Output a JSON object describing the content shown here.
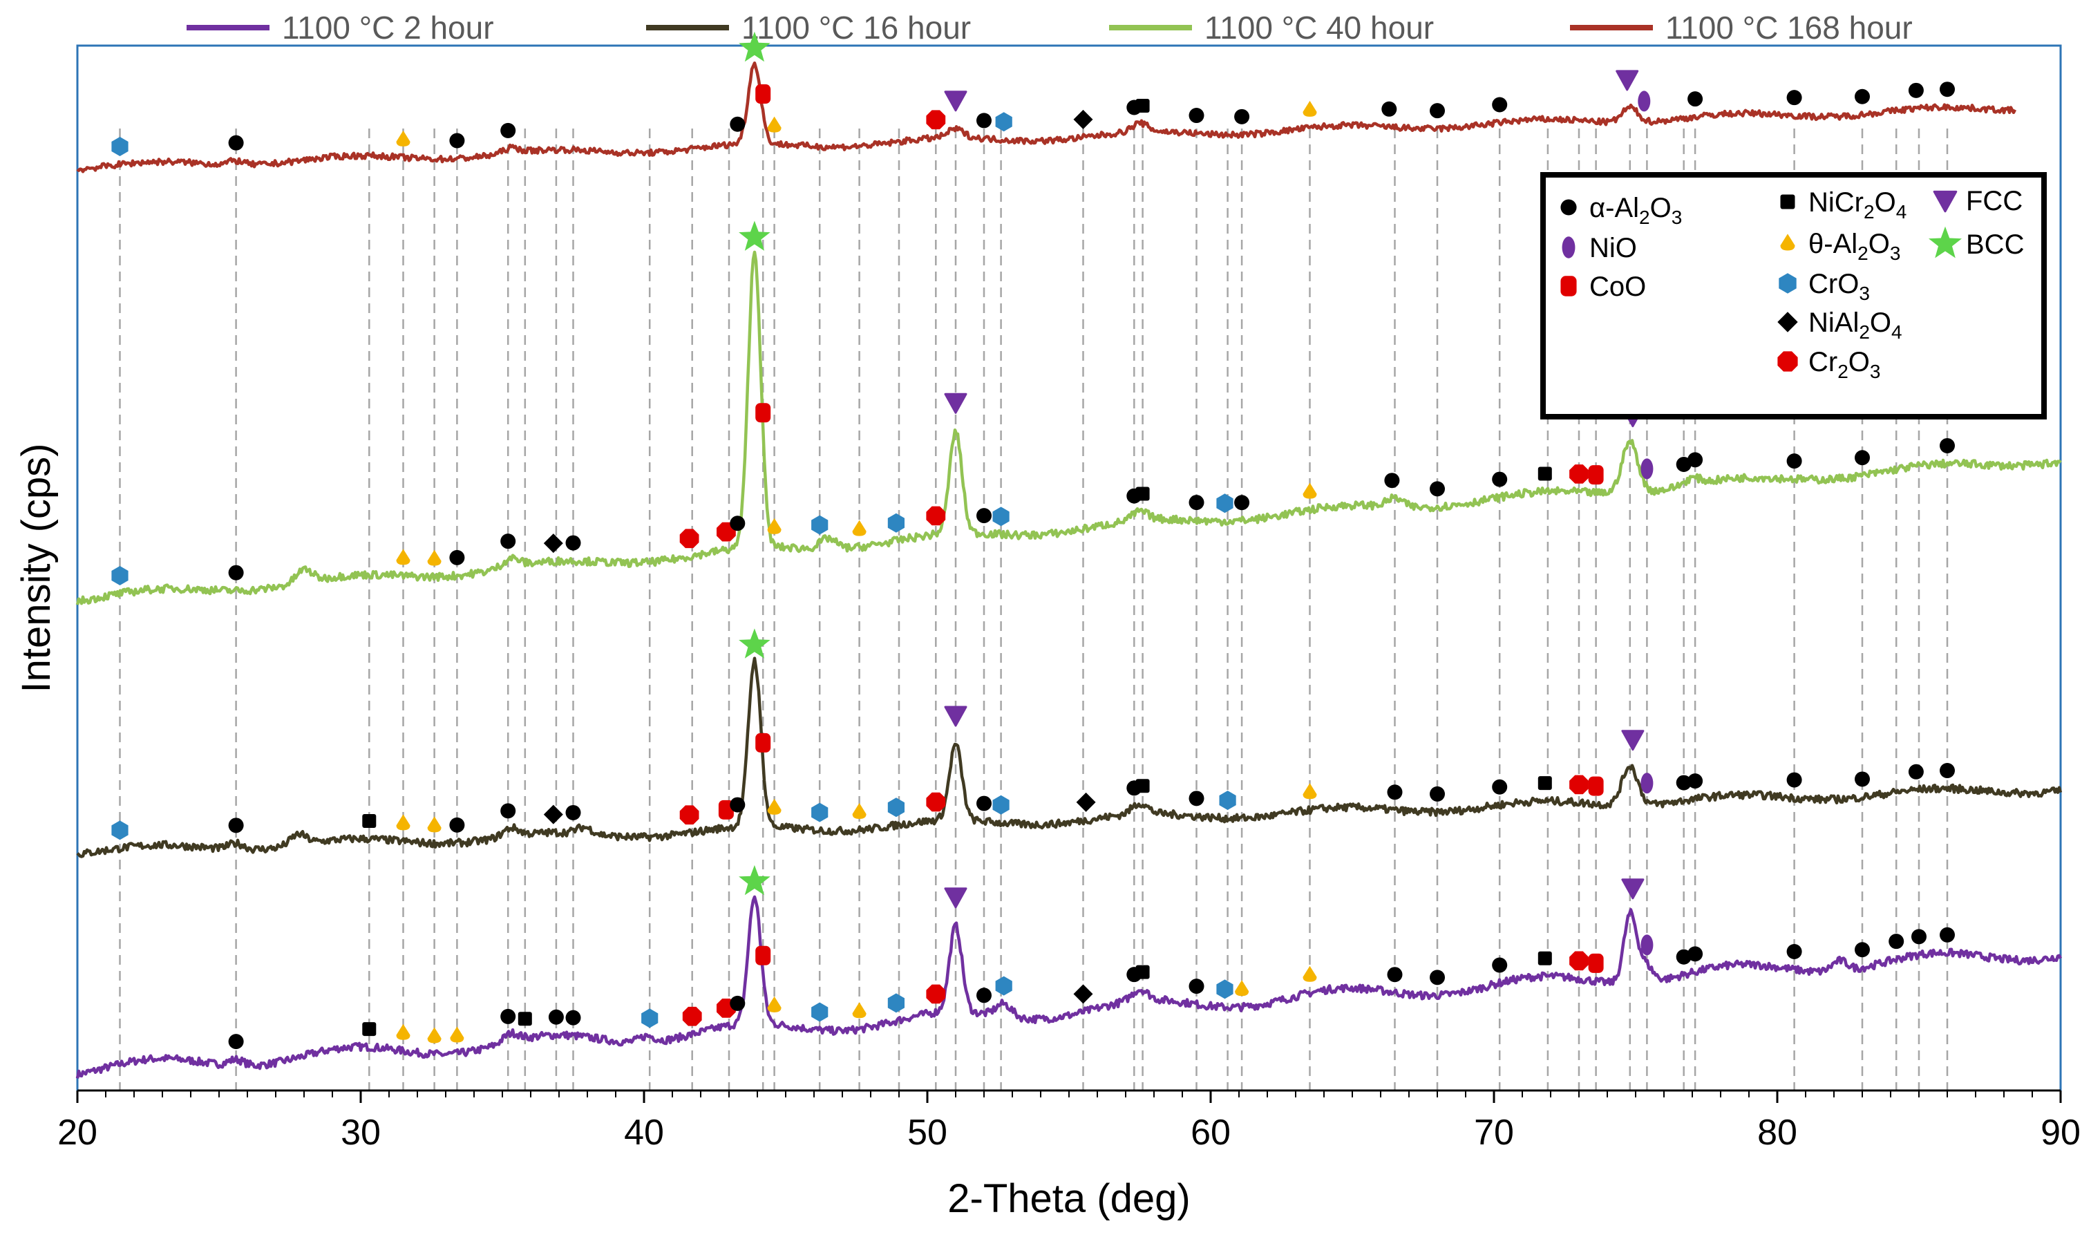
{
  "chart_data": {
    "type": "line",
    "xlabel": "2-Theta (deg)",
    "ylabel": "Intensity (cps)",
    "xlim": [
      20,
      90
    ],
    "xticks": [
      20,
      30,
      40,
      50,
      60,
      70,
      80,
      90
    ],
    "grid": "vertical dashed reference lines at indexed peak positions",
    "legend": {
      "placement": "top"
    },
    "series": [
      {
        "name": "1100 °C 2 hour",
        "color": "#7030A0",
        "offset": 0,
        "peaks": [
          [
            25.6,
            6
          ],
          [
            35.3,
            8
          ],
          [
            40.1,
            6
          ],
          [
            43.9,
            118
          ],
          [
            51.0,
            80
          ],
          [
            52.7,
            12
          ],
          [
            57.5,
            10
          ],
          [
            74.8,
            62
          ],
          [
            75.3,
            18
          ],
          [
            82.2,
            10
          ]
        ],
        "markers": [
          [
            "al",
            25.6
          ],
          [
            "nicr",
            30.3
          ],
          [
            "theta",
            31.5
          ],
          [
            "theta",
            32.6
          ],
          [
            "theta",
            33.4
          ],
          [
            "al",
            35.2
          ],
          [
            "nicr",
            35.8
          ],
          [
            "al",
            36.9
          ],
          [
            "al",
            37.5
          ],
          [
            "cro3",
            40.2
          ],
          [
            "cr2o3",
            41.7
          ],
          [
            "cr2o3",
            42.9
          ],
          [
            "al",
            43.3
          ],
          [
            "bcc",
            43.9
          ],
          [
            "coo",
            44.2
          ],
          [
            "theta",
            44.6
          ],
          [
            "cro3",
            46.2
          ],
          [
            "theta",
            47.6
          ],
          [
            "cro3",
            48.9
          ],
          [
            "cr2o3",
            50.3
          ],
          [
            "fcc",
            51.0
          ],
          [
            "al",
            52.0
          ],
          [
            "cro3",
            52.7
          ],
          [
            "nial",
            55.5
          ],
          [
            "al",
            57.3
          ],
          [
            "nicr",
            57.6
          ],
          [
            "al",
            59.5
          ],
          [
            "cro3",
            60.5
          ],
          [
            "theta",
            61.1
          ],
          [
            "theta",
            63.5
          ],
          [
            "al",
            66.5
          ],
          [
            "al",
            68.0
          ],
          [
            "al",
            70.2
          ],
          [
            "nicr",
            71.8
          ],
          [
            "cr2o3",
            73.0
          ],
          [
            "coo",
            73.6
          ],
          [
            "fcc",
            74.9
          ],
          [
            "nio",
            75.4
          ],
          [
            "al",
            76.7
          ],
          [
            "al",
            77.1
          ],
          [
            "al",
            80.6
          ],
          [
            "al",
            83.0
          ],
          [
            "al",
            84.2
          ],
          [
            "al",
            85.0
          ],
          [
            "al",
            86.0
          ]
        ]
      },
      {
        "name": "1100 °C 16 hour",
        "color": "#403A22",
        "offset": 1,
        "peaks": [
          [
            25.6,
            6
          ],
          [
            27.8,
            10
          ],
          [
            35.3,
            8
          ],
          [
            37.9,
            6
          ],
          [
            43.9,
            158
          ],
          [
            51.0,
            72
          ],
          [
            57.5,
            10
          ],
          [
            74.8,
            38
          ]
        ],
        "markers": [
          [
            "cro3",
            21.5
          ],
          [
            "al",
            25.6
          ],
          [
            "nicr",
            30.3
          ],
          [
            "theta",
            31.5
          ],
          [
            "theta",
            32.6
          ],
          [
            "al",
            33.4
          ],
          [
            "al",
            35.2
          ],
          [
            "nial",
            36.8
          ],
          [
            "al",
            37.5
          ],
          [
            "cr2o3",
            41.6
          ],
          [
            "coo",
            42.9
          ],
          [
            "al",
            43.3
          ],
          [
            "bcc",
            43.9
          ],
          [
            "coo",
            44.2
          ],
          [
            "theta",
            44.6
          ],
          [
            "cro3",
            46.2
          ],
          [
            "theta",
            47.6
          ],
          [
            "cro3",
            48.9
          ],
          [
            "cr2o3",
            50.3
          ],
          [
            "fcc",
            51.0
          ],
          [
            "al",
            52.0
          ],
          [
            "cro3",
            52.6
          ],
          [
            "nial",
            55.6
          ],
          [
            "al",
            57.3
          ],
          [
            "nicr",
            57.6
          ],
          [
            "al",
            59.5
          ],
          [
            "cro3",
            60.6
          ],
          [
            "theta",
            63.5
          ],
          [
            "al",
            66.5
          ],
          [
            "al",
            68.0
          ],
          [
            "al",
            70.2
          ],
          [
            "nicr",
            71.8
          ],
          [
            "cr2o3",
            73.0
          ],
          [
            "coo",
            73.6
          ],
          [
            "fcc",
            74.9
          ],
          [
            "nio",
            75.4
          ],
          [
            "al",
            76.7
          ],
          [
            "al",
            77.1
          ],
          [
            "al",
            80.6
          ],
          [
            "al",
            83.0
          ],
          [
            "al",
            84.9
          ],
          [
            "al",
            86.0
          ]
        ]
      },
      {
        "name": "1100 °C 40 hour",
        "color": "#92C353",
        "offset": 2,
        "peaks": [
          [
            28.0,
            12
          ],
          [
            35.3,
            8
          ],
          [
            43.9,
            275
          ],
          [
            46.5,
            10
          ],
          [
            51.0,
            95
          ],
          [
            57.5,
            8
          ],
          [
            66.5,
            8
          ],
          [
            74.8,
            48
          ],
          [
            77.0,
            6
          ]
        ],
        "markers": [
          [
            "cro3",
            21.5
          ],
          [
            "al",
            25.6
          ],
          [
            "theta",
            31.5
          ],
          [
            "theta",
            32.6
          ],
          [
            "al",
            33.4
          ],
          [
            "al",
            35.2
          ],
          [
            "nial",
            36.8
          ],
          [
            "al",
            37.5
          ],
          [
            "cr2o3",
            41.6
          ],
          [
            "cr2o3",
            42.9
          ],
          [
            "al",
            43.3
          ],
          [
            "bcc",
            43.9
          ],
          [
            "coo",
            44.2
          ],
          [
            "theta",
            44.6
          ],
          [
            "cro3",
            46.2
          ],
          [
            "theta",
            47.6
          ],
          [
            "cro3",
            48.9
          ],
          [
            "cr2o3",
            50.3
          ],
          [
            "fcc",
            51.0
          ],
          [
            "al",
            52.0
          ],
          [
            "cro3",
            52.6
          ],
          [
            "al",
            57.3
          ],
          [
            "nicr",
            57.6
          ],
          [
            "al",
            59.5
          ],
          [
            "cro3",
            60.5
          ],
          [
            "al",
            61.1
          ],
          [
            "theta",
            63.5
          ],
          [
            "al",
            66.4
          ],
          [
            "al",
            68.0
          ],
          [
            "al",
            70.2
          ],
          [
            "nicr",
            71.8
          ],
          [
            "cr2o3",
            73.0
          ],
          [
            "coo",
            73.6
          ],
          [
            "fcc",
            74.9
          ],
          [
            "nio",
            75.4
          ],
          [
            "al",
            76.7
          ],
          [
            "al",
            77.1
          ],
          [
            "al",
            80.6
          ],
          [
            "al",
            83.0
          ],
          [
            "al",
            86.0
          ]
        ]
      },
      {
        "name": "1100 °C 168 hour",
        "color": "#A93226",
        "offset": 3,
        "peaks": [
          [
            25.6,
            5
          ],
          [
            35.3,
            6
          ],
          [
            43.9,
            95
          ],
          [
            51.0,
            10
          ],
          [
            57.5,
            10
          ],
          [
            74.8,
            18
          ]
        ],
        "markers": [
          [
            "cro3",
            21.5
          ],
          [
            "al",
            25.6
          ],
          [
            "theta",
            31.5
          ],
          [
            "al",
            33.4
          ],
          [
            "al",
            35.2
          ],
          [
            "al",
            43.3
          ],
          [
            "bcc",
            43.9
          ],
          [
            "coo",
            44.2
          ],
          [
            "theta",
            44.6
          ],
          [
            "cr2o3",
            50.3
          ],
          [
            "fcc",
            51.0
          ],
          [
            "al",
            52.0
          ],
          [
            "cro3",
            52.7
          ],
          [
            "nial",
            55.5
          ],
          [
            "al",
            57.3
          ],
          [
            "nicr",
            57.6
          ],
          [
            "al",
            59.5
          ],
          [
            "al",
            61.1
          ],
          [
            "theta",
            63.5
          ],
          [
            "al",
            66.3
          ],
          [
            "al",
            68.0
          ],
          [
            "al",
            70.2
          ],
          [
            "fcc",
            74.7
          ],
          [
            "nio",
            75.3
          ],
          [
            "al",
            77.1
          ],
          [
            "al",
            80.6
          ],
          [
            "al",
            83.0
          ],
          [
            "al",
            84.9
          ],
          [
            "al",
            86.0
          ]
        ]
      }
    ],
    "reference_lines": [
      21.5,
      25.6,
      30.3,
      31.5,
      32.6,
      33.4,
      35.2,
      35.8,
      36.9,
      37.5,
      40.2,
      41.7,
      43.0,
      44.2,
      44.6,
      46.2,
      47.6,
      49.0,
      50.3,
      51.0,
      52.0,
      52.6,
      55.5,
      57.3,
      57.6,
      59.5,
      60.6,
      61.1,
      63.5,
      66.5,
      68.0,
      70.2,
      71.9,
      73.0,
      73.6,
      74.8,
      75.4,
      76.7,
      77.1,
      80.6,
      83.0,
      84.2,
      85.0,
      86.0
    ],
    "phase_key": [
      {
        "symbol": "al",
        "label": "α-Al2O3",
        "text": "α-Al",
        "sub1": "2",
        "mid": "O",
        "sub2": "3",
        "shape": "circle",
        "color": "#000000"
      },
      {
        "symbol": "nio",
        "label": "NiO",
        "text": "NiO",
        "shape": "ellipse",
        "color": "#7030A0"
      },
      {
        "symbol": "coo",
        "label": "CoO",
        "text": "CoO",
        "shape": "rounded-rect",
        "color": "#E00000"
      },
      {
        "symbol": "nicr",
        "label": "NiCr2O4",
        "text": "NiCr",
        "sub1": "2",
        "mid": "O",
        "sub2": "4",
        "shape": "square",
        "color": "#000000"
      },
      {
        "symbol": "theta",
        "label": "θ-Al2O3",
        "text": "θ-Al",
        "sub1": "2",
        "mid": "O",
        "sub2": "3",
        "shape": "drop",
        "color": "#F5B400"
      },
      {
        "symbol": "cro3",
        "label": "CrO3",
        "text": "CrO",
        "sub1": "3",
        "shape": "hexagon",
        "color": "#2E86C1"
      },
      {
        "symbol": "nial",
        "label": "NiAl2O4",
        "text": "NiAl",
        "sub1": "2",
        "mid": "O",
        "sub2": "4",
        "shape": "diamond",
        "color": "#000000"
      },
      {
        "symbol": "cr2o3",
        "label": "Cr2O3",
        "text": "Cr",
        "sub1": "2",
        "mid": "O",
        "sub2": "3",
        "shape": "octagon",
        "color": "#E00000"
      },
      {
        "symbol": "fcc",
        "label": "FCC",
        "text": "FCC",
        "shape": "triangle-down",
        "color": "#7030A0"
      },
      {
        "symbol": "bcc",
        "label": "BCC",
        "text": "BCC",
        "shape": "star",
        "color": "#5DD44A"
      }
    ]
  }
}
